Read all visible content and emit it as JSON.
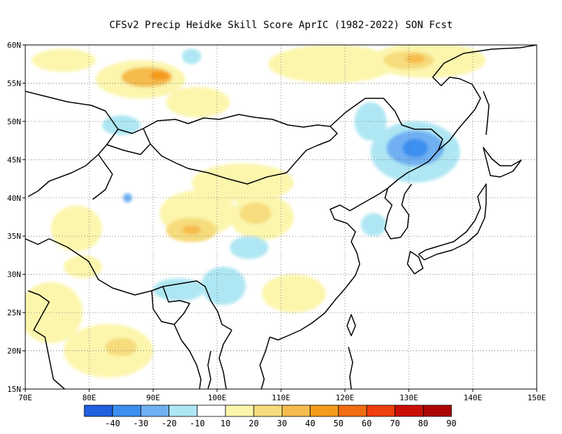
{
  "title": "CFSv2 Precip Heidke Skill Score AprIC (1982-2022) SON Fcst",
  "map": {
    "lon_range": [
      70,
      150
    ],
    "lat_range": [
      15,
      60
    ],
    "lon_ticks": [
      "70E",
      "80E",
      "90E",
      "100E",
      "110E",
      "120E",
      "130E",
      "140E",
      "150E"
    ],
    "lat_ticks": [
      "15N",
      "20N",
      "25N",
      "30N",
      "35N",
      "40N",
      "45N",
      "50N",
      "55N",
      "60N"
    ],
    "grid": "dotted",
    "skill_patches": [
      {
        "lon": 76,
        "lat": 58,
        "rx": 5,
        "ry": 1.5,
        "level": 10
      },
      {
        "lon": 88,
        "lat": 55.5,
        "rx": 7,
        "ry": 2.5,
        "level": 10
      },
      {
        "lon": 89,
        "lat": 55.8,
        "rx": 4,
        "ry": 1.3,
        "level": 30
      },
      {
        "lon": 91,
        "lat": 56.0,
        "rx": 1.5,
        "ry": 0.6,
        "level": 40
      },
      {
        "lon": 97,
        "lat": 52.5,
        "rx": 5,
        "ry": 2,
        "level": 10
      },
      {
        "lon": 118,
        "lat": 57.5,
        "rx": 10,
        "ry": 2.5,
        "level": 10
      },
      {
        "lon": 133,
        "lat": 58,
        "rx": 9,
        "ry": 2.3,
        "level": 10
      },
      {
        "lon": 130,
        "lat": 58,
        "rx": 4,
        "ry": 1.2,
        "level": 20
      },
      {
        "lon": 131,
        "lat": 58.2,
        "rx": 1.5,
        "ry": 0.6,
        "level": 30
      },
      {
        "lon": 78,
        "lat": 36,
        "rx": 4,
        "ry": 3,
        "level": 10
      },
      {
        "lon": 97,
        "lat": 38,
        "rx": 6,
        "ry": 3,
        "level": 10
      },
      {
        "lon": 96,
        "lat": 35.8,
        "rx": 4,
        "ry": 1.6,
        "level": 20
      },
      {
        "lon": 96,
        "lat": 35.8,
        "rx": 1.5,
        "ry": 0.6,
        "level": 30
      },
      {
        "lon": 107,
        "lat": 37.5,
        "rx": 5,
        "ry": 3,
        "level": 10
      },
      {
        "lon": 106,
        "lat": 38,
        "rx": 2.5,
        "ry": 1.4,
        "level": 20
      },
      {
        "lon": 104,
        "lat": 42,
        "rx": 8,
        "ry": 2.5,
        "level": 10
      },
      {
        "lon": 74,
        "lat": 25,
        "rx": 5,
        "ry": 4,
        "level": 10
      },
      {
        "lon": 83,
        "lat": 20,
        "rx": 7,
        "ry": 3.5,
        "level": 10
      },
      {
        "lon": 85,
        "lat": 20.5,
        "rx": 2.5,
        "ry": 1.2,
        "level": 20
      },
      {
        "lon": 112,
        "lat": 27.5,
        "rx": 5,
        "ry": 2.5,
        "level": 10
      },
      {
        "lon": 79,
        "lat": 31,
        "rx": 3,
        "ry": 1.5,
        "level": 10
      },
      {
        "lon": 131,
        "lat": 46,
        "rx": 7,
        "ry": 4,
        "level": -10
      },
      {
        "lon": 131,
        "lat": 46.5,
        "rx": 4.5,
        "ry": 2.3,
        "level": -20
      },
      {
        "lon": 131,
        "lat": 46.5,
        "rx": 2,
        "ry": 1.2,
        "level": -30
      },
      {
        "lon": 124,
        "lat": 50,
        "rx": 2.5,
        "ry": 2.5,
        "level": -10
      },
      {
        "lon": 101,
        "lat": 28.5,
        "rx": 3.5,
        "ry": 2.5,
        "level": -10
      },
      {
        "lon": 94,
        "lat": 28,
        "rx": 4,
        "ry": 1.5,
        "level": -10
      },
      {
        "lon": 85,
        "lat": 49.5,
        "rx": 3,
        "ry": 1.3,
        "level": -10
      },
      {
        "lon": 96,
        "lat": 58.5,
        "rx": 1.5,
        "ry": 1,
        "level": -10
      },
      {
        "lon": 105,
        "lat": 33.5,
        "rx": 3,
        "ry": 1.5,
        "level": -10
      },
      {
        "lon": 124.5,
        "lat": 36.5,
        "rx": 2,
        "ry": 1.5,
        "level": -10
      },
      {
        "lon": 86,
        "lat": 40,
        "rx": 0.7,
        "ry": 0.6,
        "level": -20
      }
    ]
  },
  "colorbar": {
    "colors": [
      "#1f5fe0",
      "#3c8ff0",
      "#6fb0f2",
      "#aee6f3",
      "#ffffff",
      "#fcf6ad",
      "#f6dc7c",
      "#f5bb4e",
      "#f49b1c",
      "#f26c10",
      "#ef3e0a",
      "#c91006",
      "#ad0404"
    ],
    "labels": [
      "-40",
      "-30",
      "-20",
      "-10",
      "10",
      "20",
      "30",
      "40",
      "50",
      "60",
      "70",
      "80",
      "90"
    ]
  }
}
